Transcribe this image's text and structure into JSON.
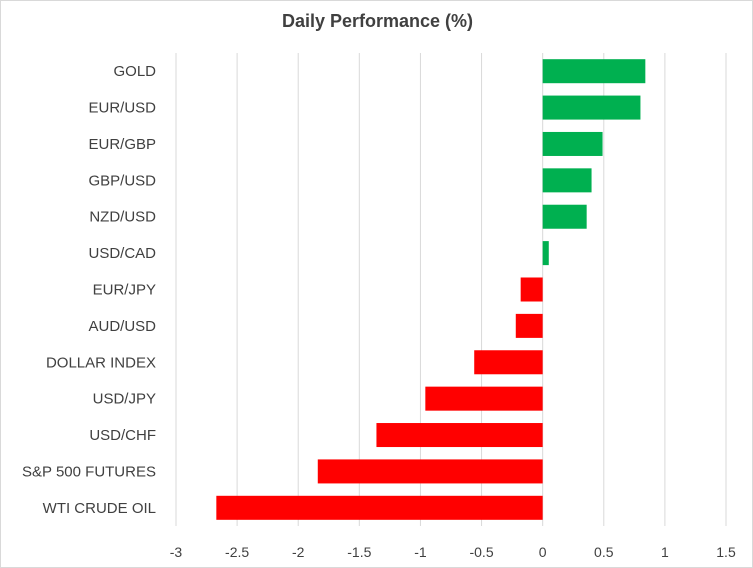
{
  "chart_data": {
    "type": "bar",
    "orientation": "horizontal",
    "title": "Daily Performance (%)",
    "xlabel": "",
    "ylabel": "",
    "categories": [
      "GOLD",
      "EUR/USD",
      "EUR/GBP",
      "GBP/USD",
      "NZD/USD",
      "USD/CAD",
      "EUR/JPY",
      "AUD/USD",
      "DOLLAR INDEX",
      "USD/JPY",
      "USD/CHF",
      "S&P 500 FUTURES",
      "WTI CRUDE OIL"
    ],
    "values": [
      0.84,
      0.8,
      0.49,
      0.4,
      0.36,
      0.05,
      -0.18,
      -0.22,
      -0.56,
      -0.96,
      -1.36,
      -1.84,
      -2.67
    ],
    "xlim": [
      -3,
      1.5
    ],
    "xticks": [
      -3,
      -2.5,
      -2,
      -1.5,
      -1,
      -0.5,
      0,
      0.5,
      1,
      1.5
    ],
    "xtick_labels": [
      "-3",
      "-2.5",
      "-2",
      "-1.5",
      "-1",
      "-0.5",
      "0",
      "0.5",
      "1",
      "1.5"
    ],
    "grid": true,
    "legend": "none",
    "colors": {
      "positive": "#00b050",
      "negative": "#ff0000",
      "grid": "#d9d9d9",
      "text": "#404040"
    }
  }
}
